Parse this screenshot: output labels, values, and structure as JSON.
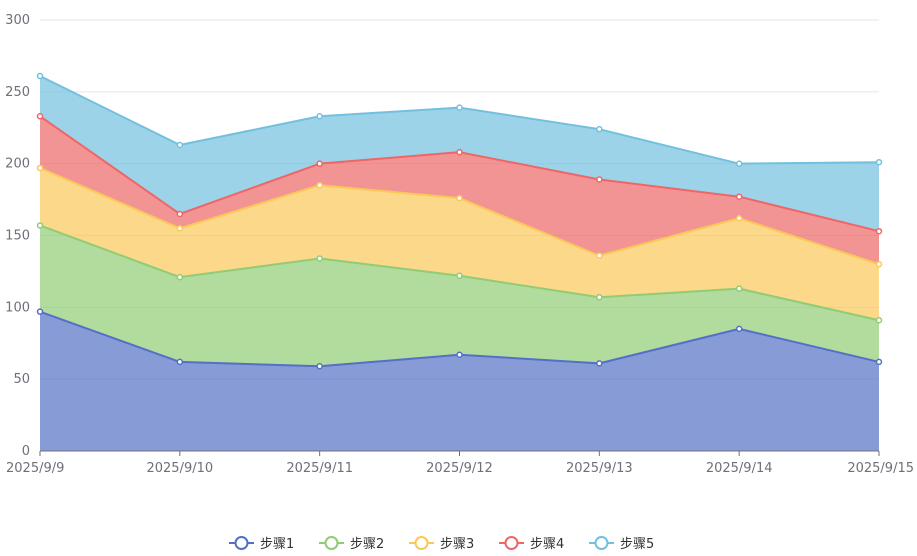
{
  "chart_data": {
    "type": "area",
    "stacked": true,
    "categories": [
      "2025/9/9",
      "2025/9/10",
      "2025/9/11",
      "2025/9/12",
      "2025/9/13",
      "2025/9/14",
      "2025/9/15"
    ],
    "series": [
      {
        "name": "步骤1",
        "color": "#5470c6",
        "values": [
          97,
          62,
          59,
          67,
          61,
          85,
          62
        ]
      },
      {
        "name": "步骤2",
        "color": "#91cc75",
        "values": [
          60,
          59,
          75,
          55,
          46,
          28,
          29
        ]
      },
      {
        "name": "步骤3",
        "color": "#fac858",
        "values": [
          40,
          34,
          51,
          54,
          29,
          49,
          39
        ]
      },
      {
        "name": "步骤4",
        "color": "#ee6666",
        "values": [
          36,
          10,
          15,
          32,
          53,
          15,
          23
        ]
      },
      {
        "name": "步骤5",
        "color": "#73c0de",
        "values": [
          28,
          48,
          33,
          31,
          35,
          23,
          48
        ]
      }
    ],
    "y_ticks": [
      0,
      50,
      100,
      150,
      200,
      250,
      300
    ],
    "ylim": [
      0,
      300
    ],
    "grid": true,
    "legend_position": "bottom-center"
  }
}
